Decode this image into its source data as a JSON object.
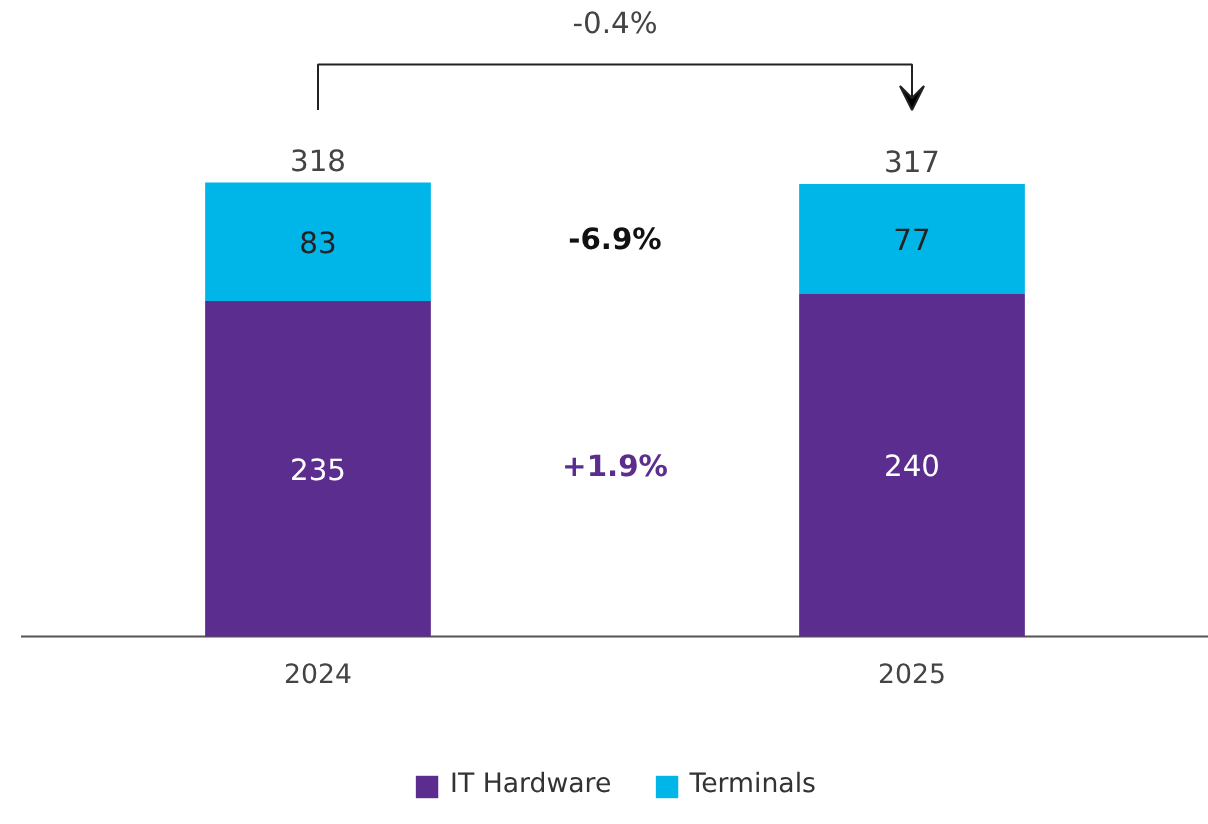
{
  "chart_data": {
    "type": "bar",
    "stacked": true,
    "categories": [
      "2024",
      "2025"
    ],
    "series": [
      {
        "name": "IT Hardware",
        "color": "#5b2d8e",
        "values": [
          235,
          240
        ]
      },
      {
        "name": "Terminals",
        "color": "#00b5e8",
        "values": [
          83,
          77
        ]
      }
    ],
    "data_labels": true,
    "totals": [
      "318",
      "317"
    ],
    "annotations": [
      "-0.4%",
      "-6.9%",
      "+1.9%"
    ],
    "legend": "bottom",
    "grid": false
  }
}
